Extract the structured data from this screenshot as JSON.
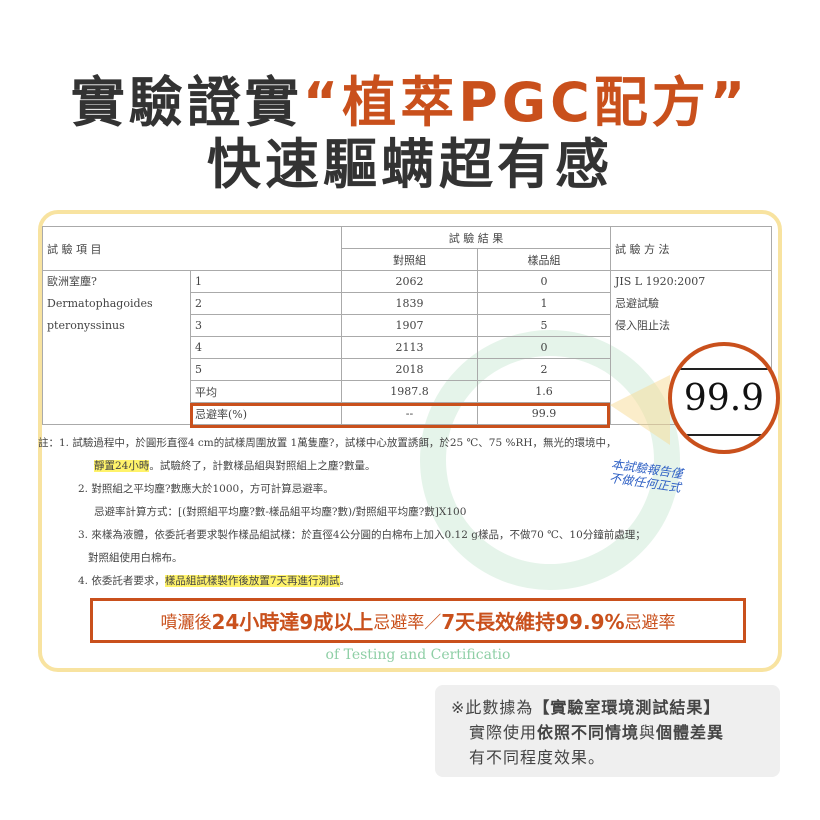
{
  "title": {
    "line1_pre": "實驗證實",
    "open_quote": "“",
    "line1_accent": "植萃PGC配方",
    "close_quote": "”",
    "line2": "快速驅螨超有感"
  },
  "table": {
    "header_item": "試 驗 項 目",
    "header_results": "試 驗 結 果",
    "header_control": "對照組",
    "header_sample": "樣品組",
    "header_method": "試 驗 方 法",
    "item_lines": [
      "歐洲室塵?",
      "Dermatophagoides",
      "pteronyssinus"
    ],
    "method_lines": [
      "JIS L 1920:2007",
      "忌避試驗",
      "侵入阻止法"
    ],
    "rows": [
      {
        "label": "1",
        "control": "2062",
        "sample": "0"
      },
      {
        "label": "2",
        "control": "1839",
        "sample": "1"
      },
      {
        "label": "3",
        "control": "1907",
        "sample": "5"
      },
      {
        "label": "4",
        "control": "2113",
        "sample": "0"
      },
      {
        "label": "5",
        "control": "2018",
        "sample": "2"
      },
      {
        "label": "平均",
        "control": "1987.8",
        "sample": "1.6"
      },
      {
        "label": "忌避率(%)",
        "control": "--",
        "sample": "99.9"
      }
    ]
  },
  "stamp": [
    "本試驗報告僅",
    "不做任何正式"
  ],
  "magnifier_value": "99.9",
  "watermark": "of Testing and Certificatio",
  "notes": {
    "n1a": "註：1. 試驗過程中，於圓形直徑4 cm的試樣周圍放置 1萬隻塵?，試樣中心放置誘餌，於25 ℃、75 %RH，無光的環境中，",
    "n1b_hl": "靜置24小時",
    "n1b": "。試驗終了，計數樣品組與對照組上之塵?數量。",
    "n2a": "2. 對照組之平均塵?數應大於1000，方可計算忌避率。",
    "n2b": "忌避率計算方式：[(對照組平均塵?數-樣品組平均塵?數)/對照組平均塵?數]X100",
    "n3a": "3. 來樣為液體，依委託者要求製作樣品組試樣：於直徑4公分圓的白棉布上加入0.12 g樣品，不做70 ℃、10分鐘前處理；",
    "n3b": "對照組使用白棉布。",
    "n4a": "4. 依委託者要求，",
    "n4_hl": "樣品組試樣製作後放置7天再進行測試",
    "n4b": "。"
  },
  "banner": {
    "p1": "噴灑後",
    "b1": "24小時達9成以上",
    "p2": "忌避率／",
    "b2": "7天長效維持99.9%",
    "p3": "忌避率"
  },
  "disclaimer": {
    "l1a": "※此數據為",
    "l1b": "【實驗室環境測試結果】",
    "l2a": "實際使用",
    "l2b": "依照不同情境",
    "l2c": "與",
    "l2d": "個體差異",
    "l3": "有不同程度效果。"
  },
  "colors": {
    "accent": "#c9501c",
    "card_border": "#f8e3a0",
    "highlight": "#fff36a"
  }
}
